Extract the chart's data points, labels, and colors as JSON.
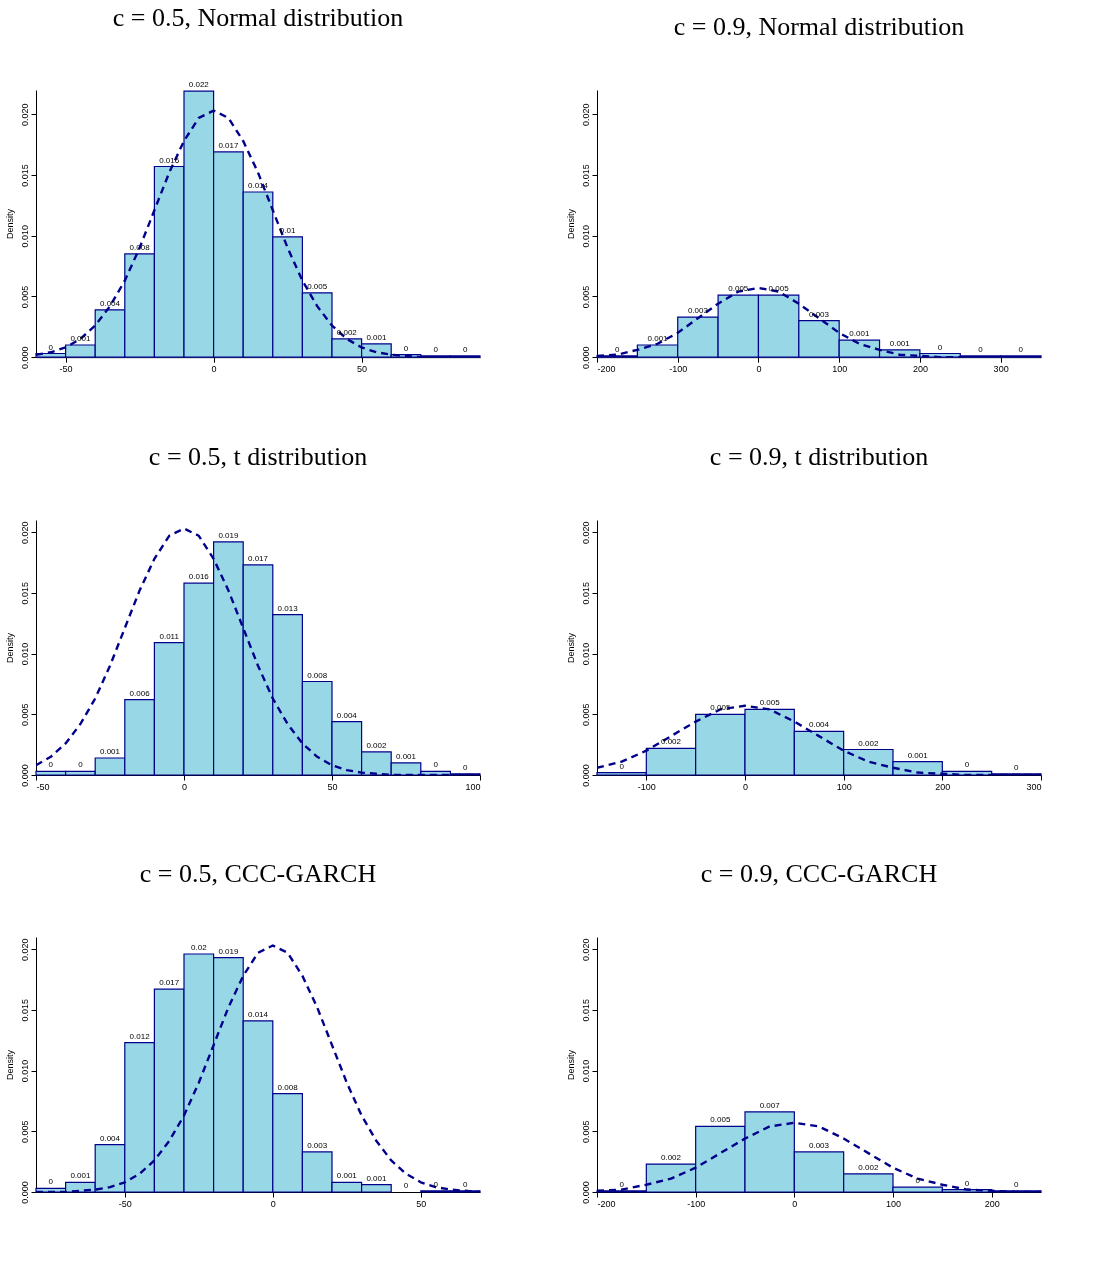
{
  "chart_data": [
    {
      "type": "histogram",
      "title": "c = 0.5, Normal distribution",
      "ylabel": "Density",
      "color": "#98d8e6",
      "bins": [
        -60,
        -50,
        -40,
        -30,
        -20,
        -10,
        0,
        10,
        20,
        30,
        40,
        50,
        60,
        70,
        80,
        90
      ],
      "values": [
        0.0003,
        0.001,
        0.0039,
        0.0085,
        0.0157,
        0.0219,
        0.0169,
        0.0136,
        0.0099,
        0.0053,
        0.0015,
        0.0011,
        0.0002,
        0.0001,
        0.0001
      ],
      "value_labels": [
        "0",
        "0.001",
        "0.004",
        "0.008",
        "0.016",
        "0.022",
        "0.017",
        "0.014",
        "0.01",
        "0.005",
        "0.002",
        "0.001",
        "0",
        "0",
        "0"
      ],
      "xlim": [
        -60,
        90
      ],
      "xticks": [
        -50,
        0,
        50
      ],
      "ylim": [
        0,
        0.022
      ],
      "yticks": [
        {
          "value": 0,
          "label": "0.000"
        },
        {
          "value": 0.005,
          "label": "0.005"
        },
        {
          "value": 0.01,
          "label": "0.010"
        },
        {
          "value": 0.015,
          "label": "0.015"
        },
        {
          "value": 0.02,
          "label": "0.020"
        }
      ],
      "series": [
        {
          "type": "line",
          "color": "#00008b",
          "line_style": "dashed",
          "x": [
            -60,
            -55,
            -50,
            -45,
            -40,
            -35,
            -30,
            -25,
            -20,
            -15,
            -10,
            -5,
            0,
            5,
            10,
            15,
            20,
            25,
            30,
            35,
            40,
            45,
            50,
            55,
            60,
            65,
            70,
            75,
            80,
            85,
            90
          ],
          "values": [
            0.0002,
            0.0004,
            0.0008,
            0.0015,
            0.0026,
            0.0042,
            0.0063,
            0.009,
            0.0121,
            0.0152,
            0.0178,
            0.0197,
            0.0203,
            0.0197,
            0.0178,
            0.0152,
            0.0121,
            0.009,
            0.0063,
            0.0042,
            0.0026,
            0.0015,
            0.0008,
            0.0004,
            0.0002,
            0.0001,
            0,
            0,
            0,
            0,
            0
          ]
        }
      ]
    },
    {
      "type": "histogram",
      "title": "c = 0.9, Normal distribution",
      "ylabel": "Density",
      "color": "#98d8e6",
      "bins": [
        -200,
        -150,
        -100,
        -50,
        0,
        50,
        100,
        150,
        200,
        250,
        300,
        350
      ],
      "values": [
        0.0001,
        0.001,
        0.0033,
        0.0051,
        0.0051,
        0.003,
        0.0014,
        0.0006,
        0.0003,
        0.0001,
        0.0001
      ],
      "value_labels": [
        "0",
        "0.001",
        "0.003",
        "0.005",
        "0.005",
        "0.003",
        "0.001",
        "0.001",
        "0",
        "0",
        "0"
      ],
      "xlim": [
        -200,
        350
      ],
      "xticks": [
        -200,
        -100,
        0,
        100,
        200,
        300
      ],
      "ylim": [
        0,
        0.022
      ],
      "yticks": [
        {
          "value": 0,
          "label": "0.000"
        },
        {
          "value": 0.005,
          "label": "0.005"
        },
        {
          "value": 0.01,
          "label": "0.010"
        },
        {
          "value": 0.015,
          "label": "0.015"
        },
        {
          "value": 0.02,
          "label": "0.020"
        }
      ],
      "series": [
        {
          "type": "line",
          "color": "#00008b",
          "line_style": "dashed",
          "x": [
            -200,
            -175,
            -150,
            -125,
            -100,
            -75,
            -50,
            -25,
            0,
            25,
            50,
            75,
            100,
            125,
            150,
            175,
            200,
            225,
            250,
            275,
            300,
            325,
            350
          ],
          "values": [
            0.0001,
            0.0002,
            0.0006,
            0.0011,
            0.002,
            0.0032,
            0.0044,
            0.0054,
            0.0057,
            0.0054,
            0.0044,
            0.0032,
            0.002,
            0.0011,
            0.0006,
            0.0002,
            0.0001,
            0,
            0,
            0,
            0,
            0,
            0
          ]
        }
      ]
    },
    {
      "type": "histogram",
      "title": "c = 0.5, t distribution",
      "ylabel": "Density",
      "color": "#98d8e6",
      "bins": [
        -50,
        -40,
        -30,
        -20,
        -10,
        0,
        10,
        20,
        30,
        40,
        50,
        60,
        70,
        80,
        90,
        100
      ],
      "values": [
        0.0003,
        0.0003,
        0.0014,
        0.0062,
        0.0109,
        0.0158,
        0.0192,
        0.0173,
        0.0132,
        0.0077,
        0.0044,
        0.0019,
        0.001,
        0.0003,
        0.0001
      ],
      "value_labels": [
        "0",
        "0",
        "0.001",
        "0.006",
        "0.011",
        "0.016",
        "0.019",
        "0.017",
        "0.013",
        "0.008",
        "0.004",
        "0.002",
        "0.001",
        "0",
        "0"
      ],
      "xlim": [
        -50,
        100
      ],
      "xticks": [
        -50,
        0,
        50,
        100
      ],
      "ylim": [
        0,
        0.021
      ],
      "yticks": [
        {
          "value": 0,
          "label": "0.000"
        },
        {
          "value": 0.005,
          "label": "0.005"
        },
        {
          "value": 0.01,
          "label": "0.010"
        },
        {
          "value": 0.015,
          "label": "0.015"
        },
        {
          "value": 0.02,
          "label": "0.020"
        }
      ],
      "series": [
        {
          "type": "line",
          "color": "#00008b",
          "line_style": "dashed",
          "x": [
            -50,
            -45,
            -40,
            -35,
            -30,
            -25,
            -20,
            -15,
            -10,
            -5,
            0,
            5,
            10,
            15,
            20,
            25,
            30,
            35,
            40,
            45,
            50,
            55,
            60,
            65,
            70,
            75,
            80,
            85,
            90,
            95,
            100
          ],
          "values": [
            0.0008,
            0.0015,
            0.0026,
            0.0042,
            0.0063,
            0.009,
            0.0121,
            0.0152,
            0.0178,
            0.0197,
            0.0203,
            0.0197,
            0.0178,
            0.0152,
            0.0121,
            0.009,
            0.0063,
            0.0042,
            0.0026,
            0.0015,
            0.0008,
            0.0004,
            0.0002,
            0.0001,
            0,
            0,
            0,
            0,
            0,
            0,
            0
          ]
        }
      ]
    },
    {
      "type": "histogram",
      "title": "c = 0.9, t distribution",
      "ylabel": "Density",
      "color": "#98d8e6",
      "bins": [
        -150,
        -100,
        -50,
        0,
        50,
        100,
        150,
        200,
        250,
        300
      ],
      "values": [
        0.0002,
        0.0022,
        0.005,
        0.0054,
        0.0036,
        0.0021,
        0.0011,
        0.0003,
        0.0001
      ],
      "value_labels": [
        "0",
        "0.002",
        "0.005",
        "0.005",
        "0.004",
        "0.002",
        "0.001",
        "0",
        "0"
      ],
      "xlim": [
        -150,
        300
      ],
      "xticks": [
        -100,
        0,
        100,
        200,
        300
      ],
      "ylim": [
        0,
        0.021
      ],
      "yticks": [
        {
          "value": 0,
          "label": "0.000"
        },
        {
          "value": 0.005,
          "label": "0.005"
        },
        {
          "value": 0.01,
          "label": "0.010"
        },
        {
          "value": 0.015,
          "label": "0.015"
        },
        {
          "value": 0.02,
          "label": "0.020"
        }
      ],
      "series": [
        {
          "type": "line",
          "color": "#00008b",
          "line_style": "dashed",
          "x": [
            -150,
            -125,
            -100,
            -75,
            -50,
            -25,
            0,
            25,
            50,
            75,
            100,
            125,
            150,
            175,
            200,
            225,
            250,
            275,
            300
          ],
          "values": [
            0.0006,
            0.0011,
            0.002,
            0.0032,
            0.0044,
            0.0054,
            0.0057,
            0.0054,
            0.0044,
            0.0032,
            0.002,
            0.0011,
            0.0006,
            0.0002,
            0.0001,
            0,
            0,
            0,
            0
          ]
        }
      ]
    },
    {
      "type": "histogram",
      "title": "c = 0.5, CCC-GARCH",
      "ylabel": "Density",
      "color": "#98d8e6",
      "bins": [
        -80,
        -70,
        -60,
        -50,
        -40,
        -30,
        -20,
        -10,
        0,
        10,
        20,
        30,
        40,
        50,
        60,
        70
      ],
      "values": [
        0.0003,
        0.0008,
        0.0039,
        0.0123,
        0.0167,
        0.0196,
        0.0193,
        0.0141,
        0.0081,
        0.0033,
        0.0008,
        0.0006,
        0,
        0.0001,
        0.0001
      ],
      "value_labels": [
        "0",
        "0.001",
        "0.004",
        "0.012",
        "0.017",
        "0.02",
        "0.019",
        "0.014",
        "0.008",
        "0.003",
        "0.001",
        "0.001",
        "0",
        "0",
        "0"
      ],
      "xlim": [
        -80,
        70
      ],
      "xticks": [
        -50,
        0,
        50
      ],
      "ylim": [
        0,
        0.021
      ],
      "yticks": [
        {
          "value": 0,
          "label": "0.000"
        },
        {
          "value": 0.005,
          "label": "0.005"
        },
        {
          "value": 0.01,
          "label": "0.010"
        },
        {
          "value": 0.015,
          "label": "0.015"
        },
        {
          "value": 0.02,
          "label": "0.020"
        }
      ],
      "series": [
        {
          "type": "line",
          "color": "#00008b",
          "line_style": "dashed",
          "x": [
            -80,
            -75,
            -70,
            -65,
            -60,
            -55,
            -50,
            -45,
            -40,
            -35,
            -30,
            -25,
            -20,
            -15,
            -10,
            -5,
            0,
            5,
            10,
            15,
            20,
            25,
            30,
            35,
            40,
            45,
            50,
            55,
            60,
            65,
            70
          ],
          "values": [
            0,
            0,
            0,
            0.0001,
            0.0002,
            0.0004,
            0.0008,
            0.0015,
            0.0026,
            0.0042,
            0.0063,
            0.009,
            0.0121,
            0.0152,
            0.0178,
            0.0197,
            0.0203,
            0.0197,
            0.0178,
            0.0152,
            0.0121,
            0.009,
            0.0063,
            0.0042,
            0.0026,
            0.0015,
            0.0008,
            0.0004,
            0.0002,
            0.0001,
            0
          ]
        }
      ]
    },
    {
      "type": "histogram",
      "title": "c = 0.9, CCC-GARCH",
      "ylabel": "Density",
      "color": "#98d8e6",
      "bins": [
        -200,
        -150,
        -100,
        -50,
        0,
        50,
        100,
        150,
        200,
        250
      ],
      "values": [
        0.0001,
        0.0023,
        0.0054,
        0.0066,
        0.0033,
        0.0015,
        0.0004,
        0.0002,
        0.0001
      ],
      "value_labels": [
        "0",
        "0.002",
        "0.005",
        "0.007",
        "0.003",
        "0.002",
        "0",
        "0",
        "0"
      ],
      "xlim": [
        -200,
        250
      ],
      "xticks": [
        -200,
        -100,
        0,
        100,
        200
      ],
      "ylim": [
        0,
        0.021
      ],
      "yticks": [
        {
          "value": 0,
          "label": "0.000"
        },
        {
          "value": 0.005,
          "label": "0.005"
        },
        {
          "value": 0.01,
          "label": "0.010"
        },
        {
          "value": 0.015,
          "label": "0.015"
        },
        {
          "value": 0.02,
          "label": "0.020"
        }
      ],
      "series": [
        {
          "type": "line",
          "color": "#00008b",
          "line_style": "dashed",
          "x": [
            -200,
            -175,
            -150,
            -125,
            -100,
            -75,
            -50,
            -25,
            0,
            25,
            50,
            75,
            100,
            125,
            150,
            175,
            200,
            225,
            250
          ],
          "values": [
            0.0001,
            0.0002,
            0.0006,
            0.0011,
            0.002,
            0.0032,
            0.0044,
            0.0054,
            0.0057,
            0.0054,
            0.0044,
            0.0032,
            0.002,
            0.0011,
            0.0006,
            0.0002,
            0.0001,
            0,
            0
          ]
        }
      ]
    }
  ]
}
